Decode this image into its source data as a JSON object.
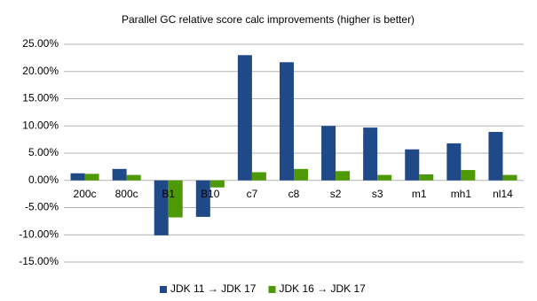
{
  "chart_data": {
    "type": "bar",
    "title": "Parallel GC relative score calc improvements (higher is better)",
    "categories": [
      "200c",
      "800c",
      "B1",
      "B10",
      "c7",
      "c8",
      "s2",
      "s3",
      "m1",
      "mh1",
      "nl14"
    ],
    "series": [
      {
        "name": "JDK 11 → JDK 17",
        "color": "#204a87",
        "values": [
          1.3,
          2.1,
          -10.1,
          -6.7,
          23.0,
          21.7,
          10.0,
          9.7,
          5.7,
          6.8,
          8.9
        ]
      },
      {
        "name": "JDK 16 → JDK 17",
        "color": "#4e9a06",
        "values": [
          1.2,
          1.0,
          -6.8,
          -1.3,
          1.5,
          2.1,
          1.7,
          1.0,
          1.1,
          1.9,
          1.0
        ]
      }
    ],
    "ylim": [
      -15,
      25
    ],
    "yticks": [
      {
        "value": -15,
        "label": "-15.00%"
      },
      {
        "value": -10,
        "label": "-10.00%"
      },
      {
        "value": -5,
        "label": "-5.00%"
      },
      {
        "value": 0,
        "label": "0.00%"
      },
      {
        "value": 5,
        "label": "5.00%"
      },
      {
        "value": 10,
        "label": "10.00%"
      },
      {
        "value": 15,
        "label": "15.00%"
      },
      {
        "value": 20,
        "label": "20.00%"
      },
      {
        "value": 25,
        "label": "25.00%"
      }
    ],
    "grid": true,
    "legend": "bottom"
  }
}
